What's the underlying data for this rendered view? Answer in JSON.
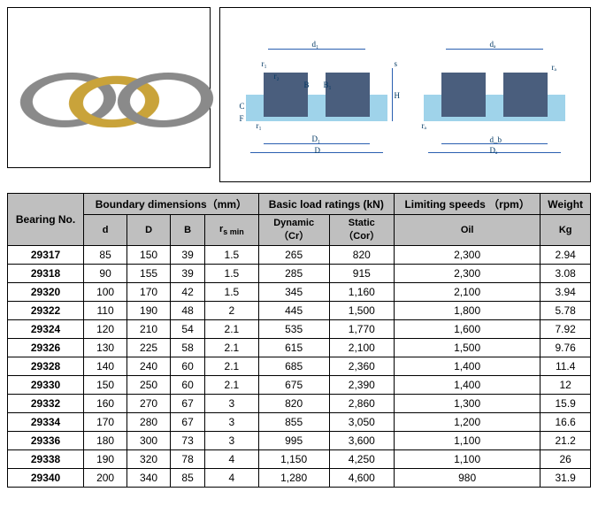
{
  "image_region": {
    "type": "product_photo",
    "description": "thrust spherical roller bearing rings",
    "ring_colors": [
      "#8a8a8a",
      "#c9a33a",
      "#8a8a8a"
    ]
  },
  "diagrams": {
    "type": "technical_drawing",
    "left": {
      "labels": [
        "d₁",
        "r₁",
        "r₂",
        "B",
        "B₁",
        "s",
        "H",
        "C",
        "F",
        "r₁",
        "D₁",
        "D"
      ],
      "shape_fill": "#4a5e7d",
      "bg_fill": "#9fd3ea",
      "line_color": "#2a5fb0"
    },
    "right": {
      "labels": [
        "dₐ",
        "rₐ",
        "rₐ",
        "d_b",
        "Dₐ"
      ],
      "shape_fill": "#4a5e7d",
      "bg_fill": "#9fd3ea",
      "line_color": "#2a5fb0"
    }
  },
  "table": {
    "type": "table",
    "header_bg": "#bfbfbf",
    "border_color": "#000000",
    "font_size": 12,
    "group_headers": {
      "bearing": "Bearing No.",
      "boundary": "Boundary dimensions（mm）",
      "load": "Basic load ratings (kN)",
      "limiting": "Limiting speeds （rpm）",
      "weight": "Weight"
    },
    "sub_headers": {
      "d": "d",
      "D": "D",
      "B": "B",
      "rsmin_html": "r<sub>s min</sub>",
      "dynamic_html": "Dynamic（Cr）",
      "static_html": "Static（Cor）",
      "oil": "Oil",
      "kg": "Kg"
    },
    "rows": [
      {
        "no": "29317",
        "d": "85",
        "D": "150",
        "B": "39",
        "rs": "1.5",
        "dyn": "265",
        "stat": "820",
        "oil": "2,300",
        "kg": "2.94"
      },
      {
        "no": "29318",
        "d": "90",
        "D": "155",
        "B": "39",
        "rs": "1.5",
        "dyn": "285",
        "stat": "915",
        "oil": "2,300",
        "kg": "3.08"
      },
      {
        "no": "29320",
        "d": "100",
        "D": "170",
        "B": "42",
        "rs": "1.5",
        "dyn": "345",
        "stat": "1,160",
        "oil": "2,100",
        "kg": "3.94"
      },
      {
        "no": "29322",
        "d": "110",
        "D": "190",
        "B": "48",
        "rs": "2",
        "dyn": "445",
        "stat": "1,500",
        "oil": "1,800",
        "kg": "5.78"
      },
      {
        "no": "29324",
        "d": "120",
        "D": "210",
        "B": "54",
        "rs": "2.1",
        "dyn": "535",
        "stat": "1,770",
        "oil": "1,600",
        "kg": "7.92"
      },
      {
        "no": "29326",
        "d": "130",
        "D": "225",
        "B": "58",
        "rs": "2.1",
        "dyn": "615",
        "stat": "2,100",
        "oil": "1,500",
        "kg": "9.76"
      },
      {
        "no": "29328",
        "d": "140",
        "D": "240",
        "B": "60",
        "rs": "2.1",
        "dyn": "685",
        "stat": "2,360",
        "oil": "1,400",
        "kg": "11.4"
      },
      {
        "no": "29330",
        "d": "150",
        "D": "250",
        "B": "60",
        "rs": "2.1",
        "dyn": "675",
        "stat": "2,390",
        "oil": "1,400",
        "kg": "12"
      },
      {
        "no": "29332",
        "d": "160",
        "D": "270",
        "B": "67",
        "rs": "3",
        "dyn": "820",
        "stat": "2,860",
        "oil": "1,300",
        "kg": "15.9"
      },
      {
        "no": "29334",
        "d": "170",
        "D": "280",
        "B": "67",
        "rs": "3",
        "dyn": "855",
        "stat": "3,050",
        "oil": "1,200",
        "kg": "16.6"
      },
      {
        "no": "29336",
        "d": "180",
        "D": "300",
        "B": "73",
        "rs": "3",
        "dyn": "995",
        "stat": "3,600",
        "oil": "1,100",
        "kg": "21.2"
      },
      {
        "no": "29338",
        "d": "190",
        "D": "320",
        "B": "78",
        "rs": "4",
        "dyn": "1,150",
        "stat": "4,250",
        "oil": "1,100",
        "kg": "26"
      },
      {
        "no": "29340",
        "d": "200",
        "D": "340",
        "B": "85",
        "rs": "4",
        "dyn": "1,280",
        "stat": "4,600",
        "oil": "980",
        "kg": "31.9"
      }
    ]
  }
}
